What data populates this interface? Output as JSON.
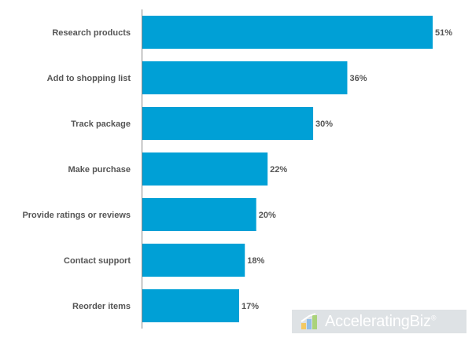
{
  "chart_data": {
    "type": "bar",
    "orientation": "horizontal",
    "categories": [
      "Research products",
      "Add to shopping list",
      "Track package",
      "Make purchase",
      "Provide ratings or reviews",
      "Contact support",
      "Reorder items"
    ],
    "values": [
      51,
      36,
      30,
      22,
      20,
      18,
      17
    ],
    "value_labels": [
      "51%",
      "36%",
      "30%",
      "22%",
      "20%",
      "18%",
      "17%"
    ],
    "xlim": [
      0,
      51
    ],
    "grid": false,
    "legend": "none",
    "bar_color": "#00a0d6",
    "axis_color": "#888888",
    "label_color": "#555555"
  },
  "watermark": {
    "text": "AcceleratingBiz",
    "mark": "®"
  }
}
